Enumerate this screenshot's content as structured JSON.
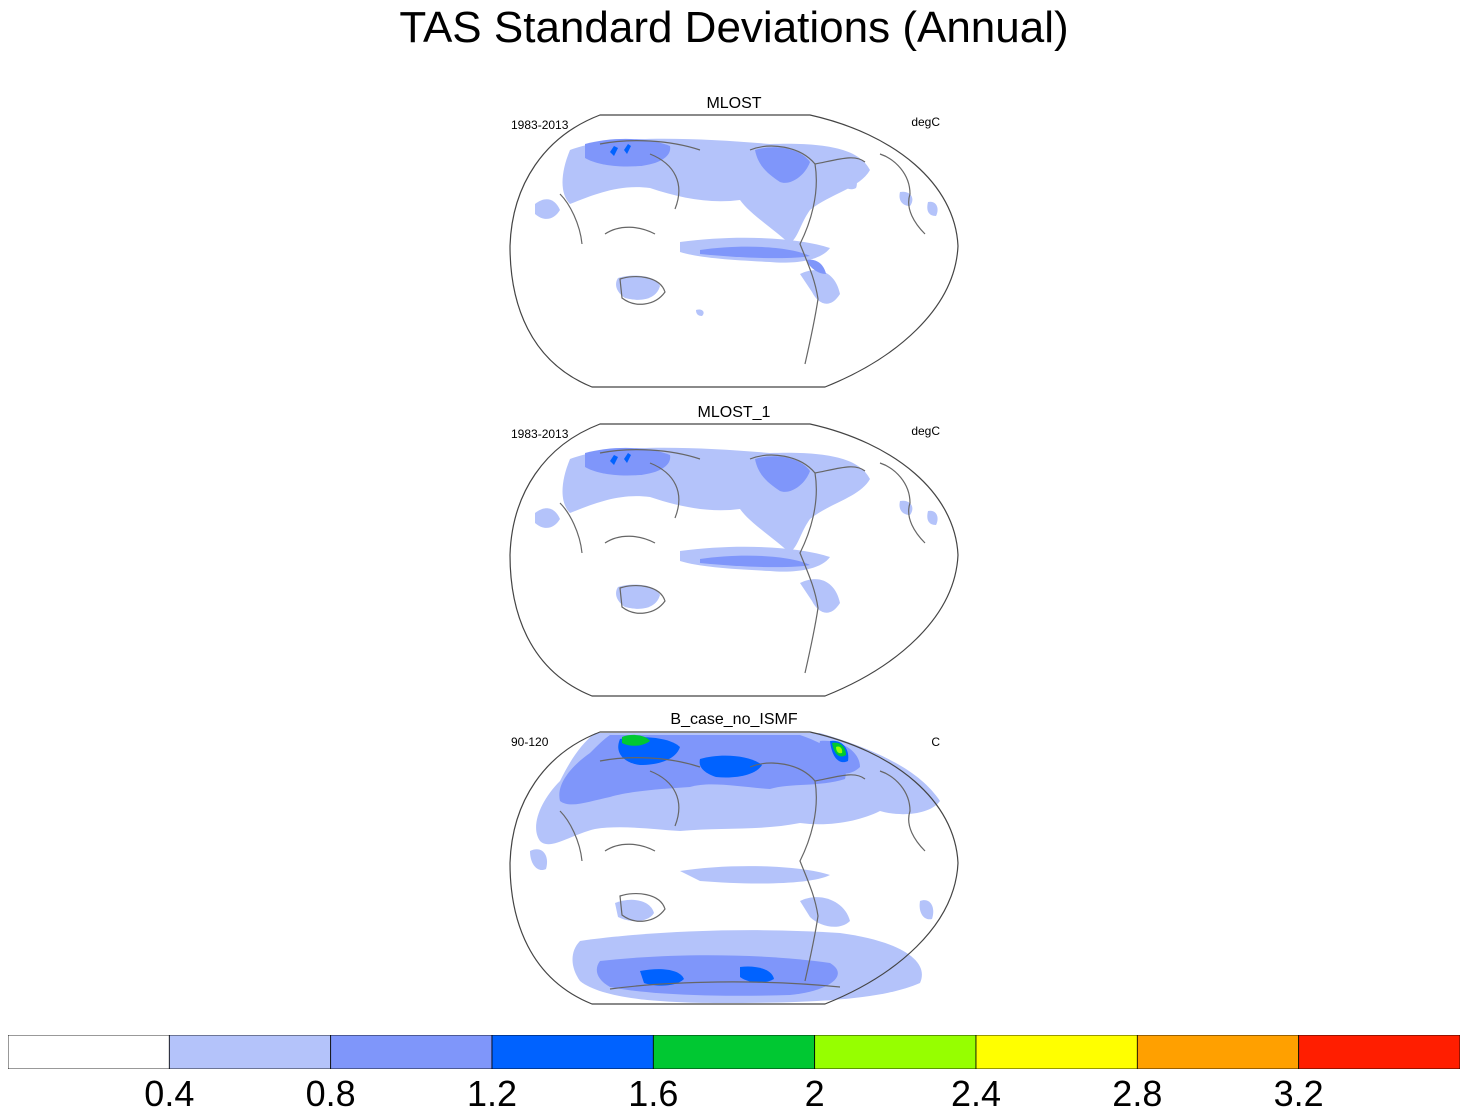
{
  "title": "TAS Standard Deviations (Annual)",
  "panels": [
    {
      "title": "MLOST",
      "left_label": "1983-2013",
      "right_label": "degC"
    },
    {
      "title": "MLOST_1",
      "left_label": "1983-2013",
      "right_label": "degC"
    },
    {
      "title": "B_case_no_ISMF",
      "left_label": "90-120",
      "right_label": "C"
    }
  ],
  "colorbar": {
    "colors": [
      "#ffffff",
      "#b4c3fa",
      "#7f96fa",
      "#0062ff",
      "#00c832",
      "#96ff00",
      "#ffff00",
      "#ffa000",
      "#ff1e00"
    ],
    "labels": [
      "0.4",
      "0.8",
      "1.2",
      "1.6",
      "2",
      "2.4",
      "2.8",
      "3.2"
    ]
  }
}
